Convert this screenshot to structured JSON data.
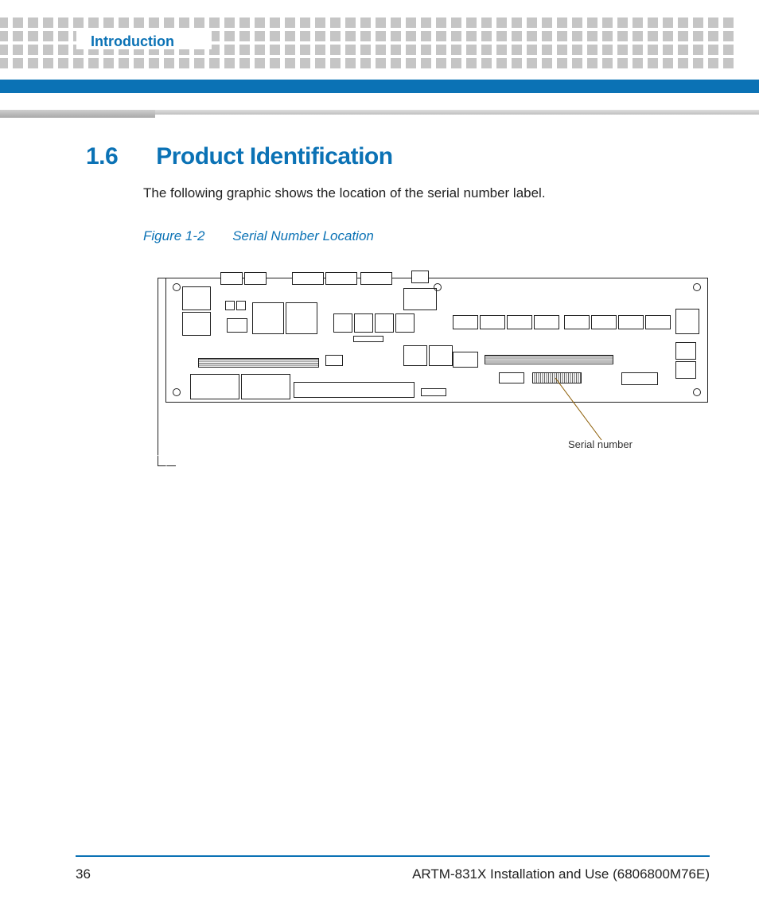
{
  "header": {
    "running_head": "Introduction"
  },
  "section": {
    "number": "1.6",
    "title": "Product Identification",
    "body": "The following graphic shows the location of the serial number label."
  },
  "figure": {
    "label_prefix": "Figure 1-2",
    "label_title": "Serial Number Location",
    "callout_text": "Serial number",
    "diagram": {
      "type": "technical-line-drawing",
      "description": "PCB (printed circuit board) outline with connectors along top edge, various IC/chip rectangles, edge connectors, and a downward tab on the left side. A callout leader points from a small label area on the lower-right of the board to the text 'Serial number' below.",
      "stroke_color": "#222222",
      "callout_color": "#8a5a00",
      "background_color": "#ffffff"
    }
  },
  "footer": {
    "page_number": "36",
    "doc_title": "ARTM-831X Installation and Use (6806800M76E)"
  },
  "colors": {
    "brand_blue": "#0b72b5",
    "light_gray": "#c9c9c9",
    "text": "#1a1a1a"
  }
}
